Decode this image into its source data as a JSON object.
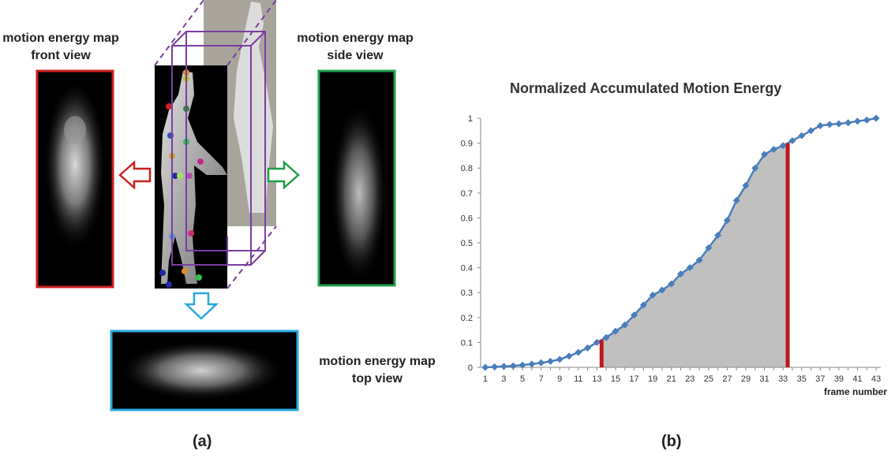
{
  "panel_a": {
    "front_label": "motion energy map",
    "front_label2": "front view",
    "side_label": "motion energy map",
    "side_label2": "side view",
    "top_label": "motion energy map",
    "top_label2": "top view",
    "caption": "(a)",
    "colors": {
      "front": "#cc1f1f",
      "side": "#1e9e4a",
      "top": "#29a8e0",
      "cube": "#7a3ea0"
    }
  },
  "panel_b": {
    "caption": "(b)"
  },
  "chart_data": {
    "type": "area",
    "title": "Normalized Accumulated Motion Energy",
    "xlabel": "frame number",
    "ylabel": "",
    "x": [
      1,
      2,
      3,
      4,
      5,
      6,
      7,
      8,
      9,
      10,
      11,
      12,
      13,
      14,
      15,
      16,
      17,
      18,
      19,
      20,
      21,
      22,
      23,
      24,
      25,
      26,
      27,
      28,
      29,
      30,
      31,
      32,
      33,
      34,
      35,
      36,
      37,
      38,
      39,
      40,
      41,
      42,
      43
    ],
    "x_tick_labels": [
      "1",
      "3",
      "5",
      "7",
      "9",
      "11",
      "13",
      "15",
      "17",
      "19",
      "21",
      "23",
      "25",
      "27",
      "29",
      "31",
      "33",
      "35",
      "37",
      "39",
      "41",
      "43"
    ],
    "y_tick_labels": [
      "0",
      "0.1",
      "0.2",
      "0.3",
      "0.4",
      "0.5",
      "0.6",
      "0.7",
      "0.8",
      "0.9",
      "1"
    ],
    "ylim": [
      0,
      1
    ],
    "series": [
      {
        "values": [
          0.0,
          0.002,
          0.004,
          0.006,
          0.009,
          0.013,
          0.018,
          0.024,
          0.032,
          0.045,
          0.06,
          0.078,
          0.1,
          0.12,
          0.145,
          0.17,
          0.21,
          0.25,
          0.29,
          0.31,
          0.335,
          0.375,
          0.4,
          0.43,
          0.48,
          0.53,
          0.59,
          0.67,
          0.73,
          0.8,
          0.855,
          0.875,
          0.89,
          0.91,
          0.93,
          0.95,
          0.97,
          0.975,
          0.978,
          0.982,
          0.988,
          0.993,
          1.0
        ]
      }
    ],
    "shaded_range": [
      13.5,
      33.5
    ],
    "markers": [
      13.5,
      33.5
    ],
    "colors": {
      "line": "#4a7ebb",
      "marker": "#4a7ebb",
      "fill": "#c0c0c0",
      "bound": "#c0161c",
      "axis": "#888888"
    },
    "grid": false,
    "legend": "none"
  }
}
